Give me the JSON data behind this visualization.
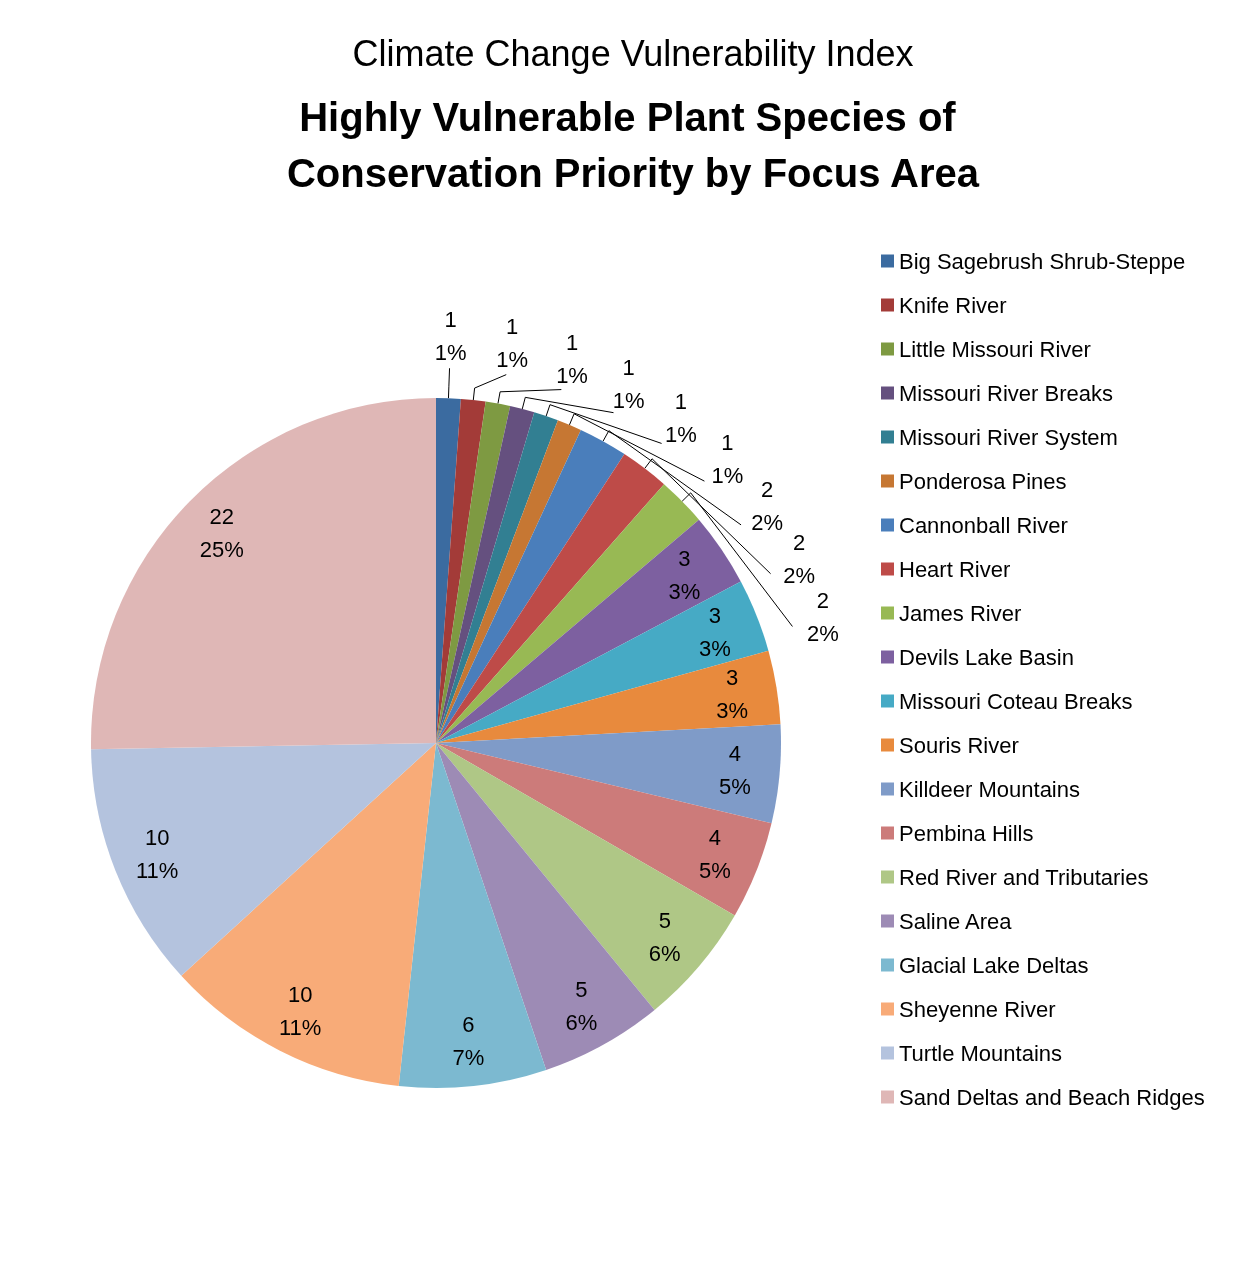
{
  "chart_data": {
    "type": "pie",
    "subtitle": "Climate Change Vulnerability Index",
    "title": "Highly Vulnerable Plant Species of Conservation Priority by Focus Area",
    "categories": [
      "Big Sagebrush Shrub-Steppe",
      "Knife River",
      "Little Missouri River",
      "Missouri River Breaks",
      "Missouri River System",
      "Ponderosa Pines",
      "Cannonball River",
      "Heart River",
      "James River",
      "Devils Lake Basin",
      "Missouri Coteau Breaks",
      "Souris River",
      "Killdeer Mountains",
      "Pembina Hills",
      "Red River and Tributaries",
      "Saline Area",
      "Glacial Lake Deltas",
      "Sheyenne River",
      "Turtle Mountains",
      "Sand Deltas and Beach Ridges"
    ],
    "values": [
      1,
      1,
      1,
      1,
      1,
      1,
      2,
      2,
      2,
      3,
      3,
      3,
      4,
      4,
      5,
      5,
      6,
      10,
      10,
      22
    ],
    "value_labels": [
      "1\n1%",
      "1\n1%",
      "1\n1%",
      "1\n1%",
      "1\n1%",
      "1\n1%",
      "2\n2%",
      "2\n2%",
      "2\n2%",
      "3\n3%",
      "3\n3%",
      "3\n3%",
      "4\n5%",
      "4\n5%",
      "5\n6%",
      "5\n6%",
      "6\n7%",
      "10\n11%",
      "10\n11%",
      "22\n25%"
    ],
    "colors": [
      "#3b6ba0",
      "#a33b38",
      "#7e9a42",
      "#65507f",
      "#327f92",
      "#c67733",
      "#4a7ebb",
      "#be4b48",
      "#98b954",
      "#7d60a0",
      "#46aac5",
      "#e88a3d",
      "#7f9bc8",
      "#cc7b7a",
      "#afc786",
      "#9d8bb5",
      "#7cb9d0",
      "#f8ab78",
      "#b4c3de",
      "#dfb7b6"
    ],
    "legend": "right"
  }
}
